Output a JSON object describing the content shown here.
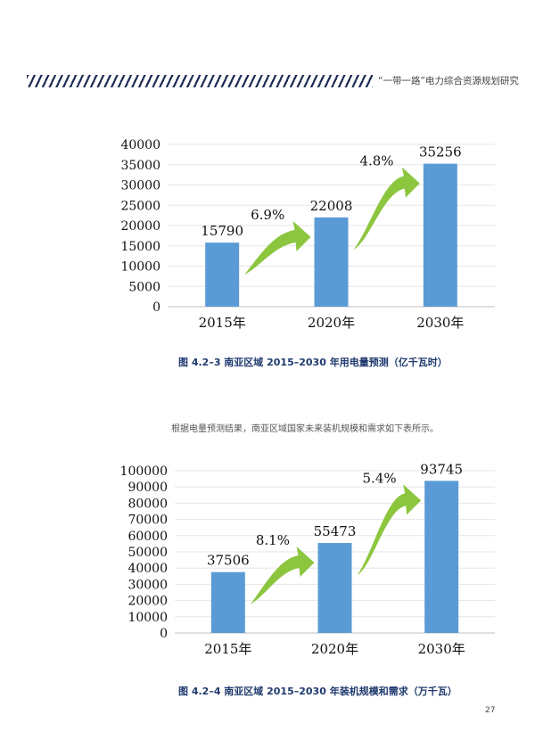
{
  "header": {
    "title": "“一带一路”电力综合资源规划研究"
  },
  "body_text": "根据电量预测结果，南亚区域国家未来装机规模和需求如下表所示。",
  "page_number": "27",
  "chart_data": [
    {
      "type": "bar",
      "caption": "图 4.2–3  南亚区域 2015–2030 年用电量预测（亿千瓦时）",
      "categories": [
        "2015年",
        "2020年",
        "2030年"
      ],
      "values": [
        15790,
        22008,
        35256
      ],
      "value_labels": [
        "15790",
        "22008",
        "35256"
      ],
      "yticks": [
        "0",
        "5000",
        "10000",
        "15000",
        "20000",
        "25000",
        "30000",
        "35000",
        "40000"
      ],
      "ylim": [
        0,
        40000
      ],
      "growth_labels": [
        "6.9%",
        "4.8%"
      ],
      "bar_color": "#5b9bd5",
      "arrow_color": "#8cc63f",
      "grid": true
    },
    {
      "type": "bar",
      "caption": "图 4.2–4  南亚区域 2015–2030 年装机规模和需求（万千瓦）",
      "categories": [
        "2015年",
        "2020年",
        "2030年"
      ],
      "values": [
        37506,
        55473,
        93745
      ],
      "value_labels": [
        "37506",
        "55473",
        "93745"
      ],
      "yticks": [
        "0",
        "10000",
        "20000",
        "30000",
        "40000",
        "50000",
        "60000",
        "70000",
        "80000",
        "90000",
        "100000"
      ],
      "ylim": [
        0,
        100000
      ],
      "growth_labels": [
        "8.1%",
        "5.4%"
      ],
      "bar_color": "#5b9bd5",
      "arrow_color": "#8cc63f",
      "grid": true
    }
  ]
}
